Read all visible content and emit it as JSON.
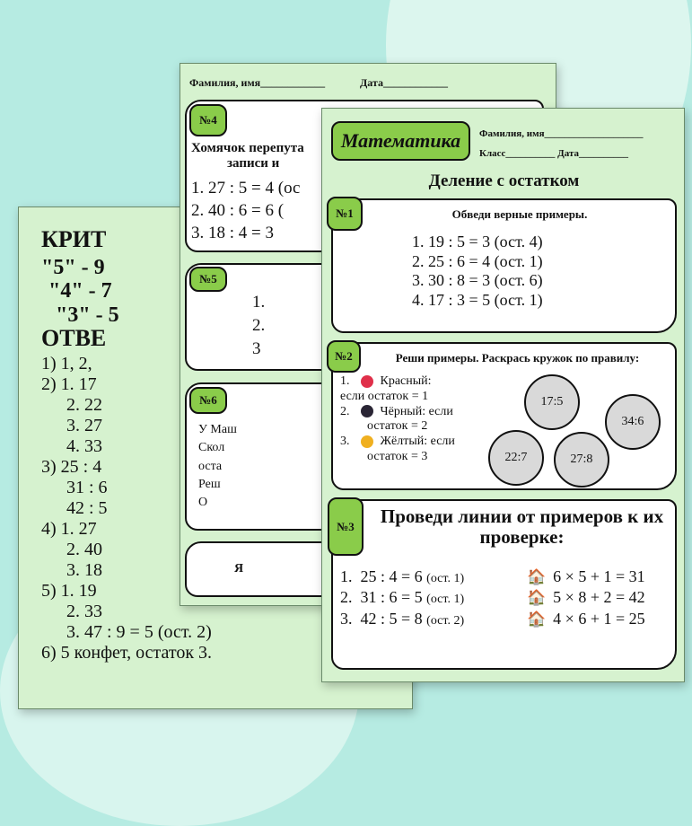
{
  "background": {
    "color": "#b6ebe2",
    "accent": "#8acc4a",
    "page": "#d6f2cf"
  },
  "back_page": {
    "criteria_title": "КРИТ",
    "criteria": [
      "\"5\" - 9",
      "\"4\" - 7",
      "\"3\" - 5"
    ],
    "answers_title": "ОТВЕ",
    "answers": [
      "1) 1, 2,",
      "2) 1. 17",
      "2. 22",
      "3. 27",
      "4. 33",
      "3) 25 : 4",
      "31 : 6",
      "42 : 5",
      "4) 1. 27",
      "2. 40",
      "3. 18",
      "5) 1. 19",
      "2. 33",
      "3. 47 : 9 = 5 (ост. 2)",
      "6) 5 конфет, остаток 3."
    ]
  },
  "middle_page": {
    "name_label": "Фамилия, имя",
    "date_label": "Дата",
    "task4": {
      "num": "№4",
      "title": "Хомячок перепута",
      "title2": "записи и",
      "rows": [
        "1.  27 : 5 = 4 (ос",
        "2.  40 : 6 = 6 (",
        "3.  18 : 4 = 3"
      ]
    },
    "task5": {
      "num": "№5",
      "rows": [
        "1.",
        "2.",
        "3"
      ]
    },
    "task6": {
      "num": "№6",
      "rows": [
        "У Маш",
        "Скол",
        "оста",
        "Реш",
        "О"
      ]
    },
    "task7": {
      "text": "Я"
    }
  },
  "front_page": {
    "subject": "Математика",
    "name_label": "Фамилия, имя",
    "class_label": "Класс",
    "date_label": "Дата",
    "title": "Деление с остатком",
    "task1": {
      "num": "№1",
      "title": "Обведи верные примеры.",
      "rows": [
        "1.   19 : 5 = 3 (ост. 4)",
        "2.   25 : 6 = 4 (ост. 1)",
        "3.   30 : 8 = 3 (ост. 6)",
        "4.   17 : 3 = 5 (ост. 1)"
      ]
    },
    "task2": {
      "num": "№2",
      "title": "Реши примеры. Раскрась кружок по правилу:",
      "rules": [
        {
          "n": "1.",
          "color": "#e0304a",
          "a": "Красный:",
          "b": "если остаток = 1"
        },
        {
          "n": "2.",
          "color": "#2a2535",
          "a": "Чёрный: если",
          "b": "остаток = 2"
        },
        {
          "n": "3.",
          "color": "#f0b020",
          "a": "Жёлтый: если",
          "b": "остаток = 3"
        }
      ],
      "circles": [
        "17:5",
        "34:6",
        "22:7",
        "27:8"
      ]
    },
    "task3": {
      "num": "№3",
      "title": "Проведи линии от примеров к их проверке:",
      "left": [
        {
          "n": "1.",
          "eq": "25 : 4 = 6",
          "r": "(ост. 1)"
        },
        {
          "n": "2.",
          "eq": "31 : 6 = 5",
          "r": "(ост. 1)"
        },
        {
          "n": "3.",
          "eq": "42 : 5 = 8",
          "r": "(ост. 2)"
        }
      ],
      "right": [
        "6 × 5 + 1 = 31",
        "5 × 8 + 2 = 42",
        "4 × 6 + 1 = 25"
      ],
      "icon": "house-icon"
    }
  }
}
